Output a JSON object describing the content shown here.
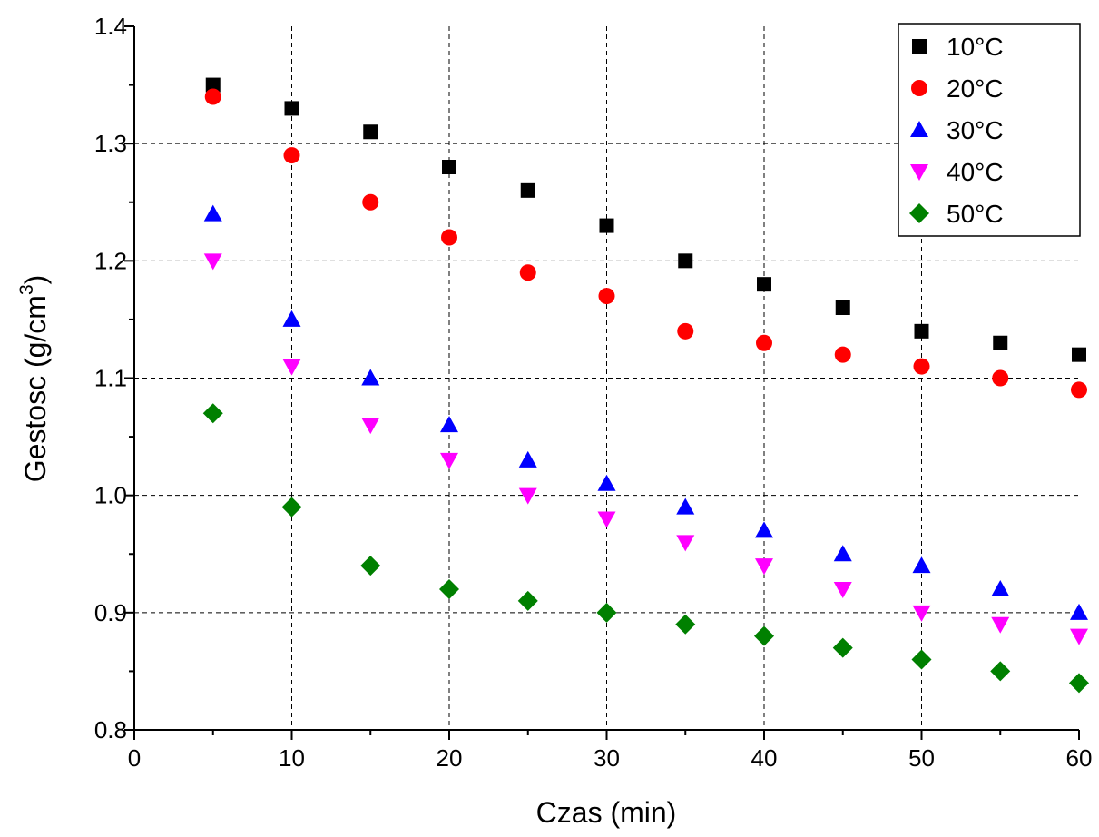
{
  "chart_data": {
    "type": "scatter",
    "title": "",
    "xlabel": "Czas (min)",
    "ylabel": {
      "main": "Gestosc (g/cm",
      "superscript": "3",
      "close": ")"
    },
    "xlim": [
      0,
      60
    ],
    "ylim": [
      0.8,
      1.4
    ],
    "x_ticks": [
      "0",
      "10",
      "20",
      "30",
      "40",
      "50",
      "60"
    ],
    "y_ticks": [
      "0.8",
      "0.9",
      "1.0",
      "1.1",
      "1.2",
      "1.3",
      "1.4"
    ],
    "grid": "dashed",
    "legend_position": "top-right",
    "x": [
      5,
      10,
      15,
      20,
      25,
      30,
      35,
      40,
      45,
      50,
      55,
      60
    ],
    "series": [
      {
        "name": "10°C",
        "marker": "square",
        "color": "#000000",
        "values": [
          1.35,
          1.33,
          1.31,
          1.28,
          1.26,
          1.23,
          1.2,
          1.18,
          1.16,
          1.14,
          1.13,
          1.12
        ]
      },
      {
        "name": "20°C",
        "marker": "circle",
        "color": "#ff0000",
        "values": [
          1.34,
          1.29,
          1.25,
          1.22,
          1.19,
          1.17,
          1.14,
          1.13,
          1.12,
          1.11,
          1.1,
          1.09
        ]
      },
      {
        "name": "30°C",
        "marker": "triangle-up",
        "color": "#0000ff",
        "values": [
          1.24,
          1.15,
          1.1,
          1.06,
          1.03,
          1.01,
          0.99,
          0.97,
          0.95,
          0.94,
          0.92,
          0.9
        ]
      },
      {
        "name": "40°C",
        "marker": "triangle-down",
        "color": "#ff00ff",
        "values": [
          1.2,
          1.11,
          1.06,
          1.03,
          1.0,
          0.98,
          0.96,
          0.94,
          0.92,
          0.9,
          0.89,
          0.88
        ]
      },
      {
        "name": "50°C",
        "marker": "diamond",
        "color": "#008000",
        "values": [
          1.07,
          0.99,
          0.94,
          0.92,
          0.91,
          0.9,
          0.89,
          0.88,
          0.87,
          0.86,
          0.85,
          0.84
        ]
      }
    ]
  }
}
